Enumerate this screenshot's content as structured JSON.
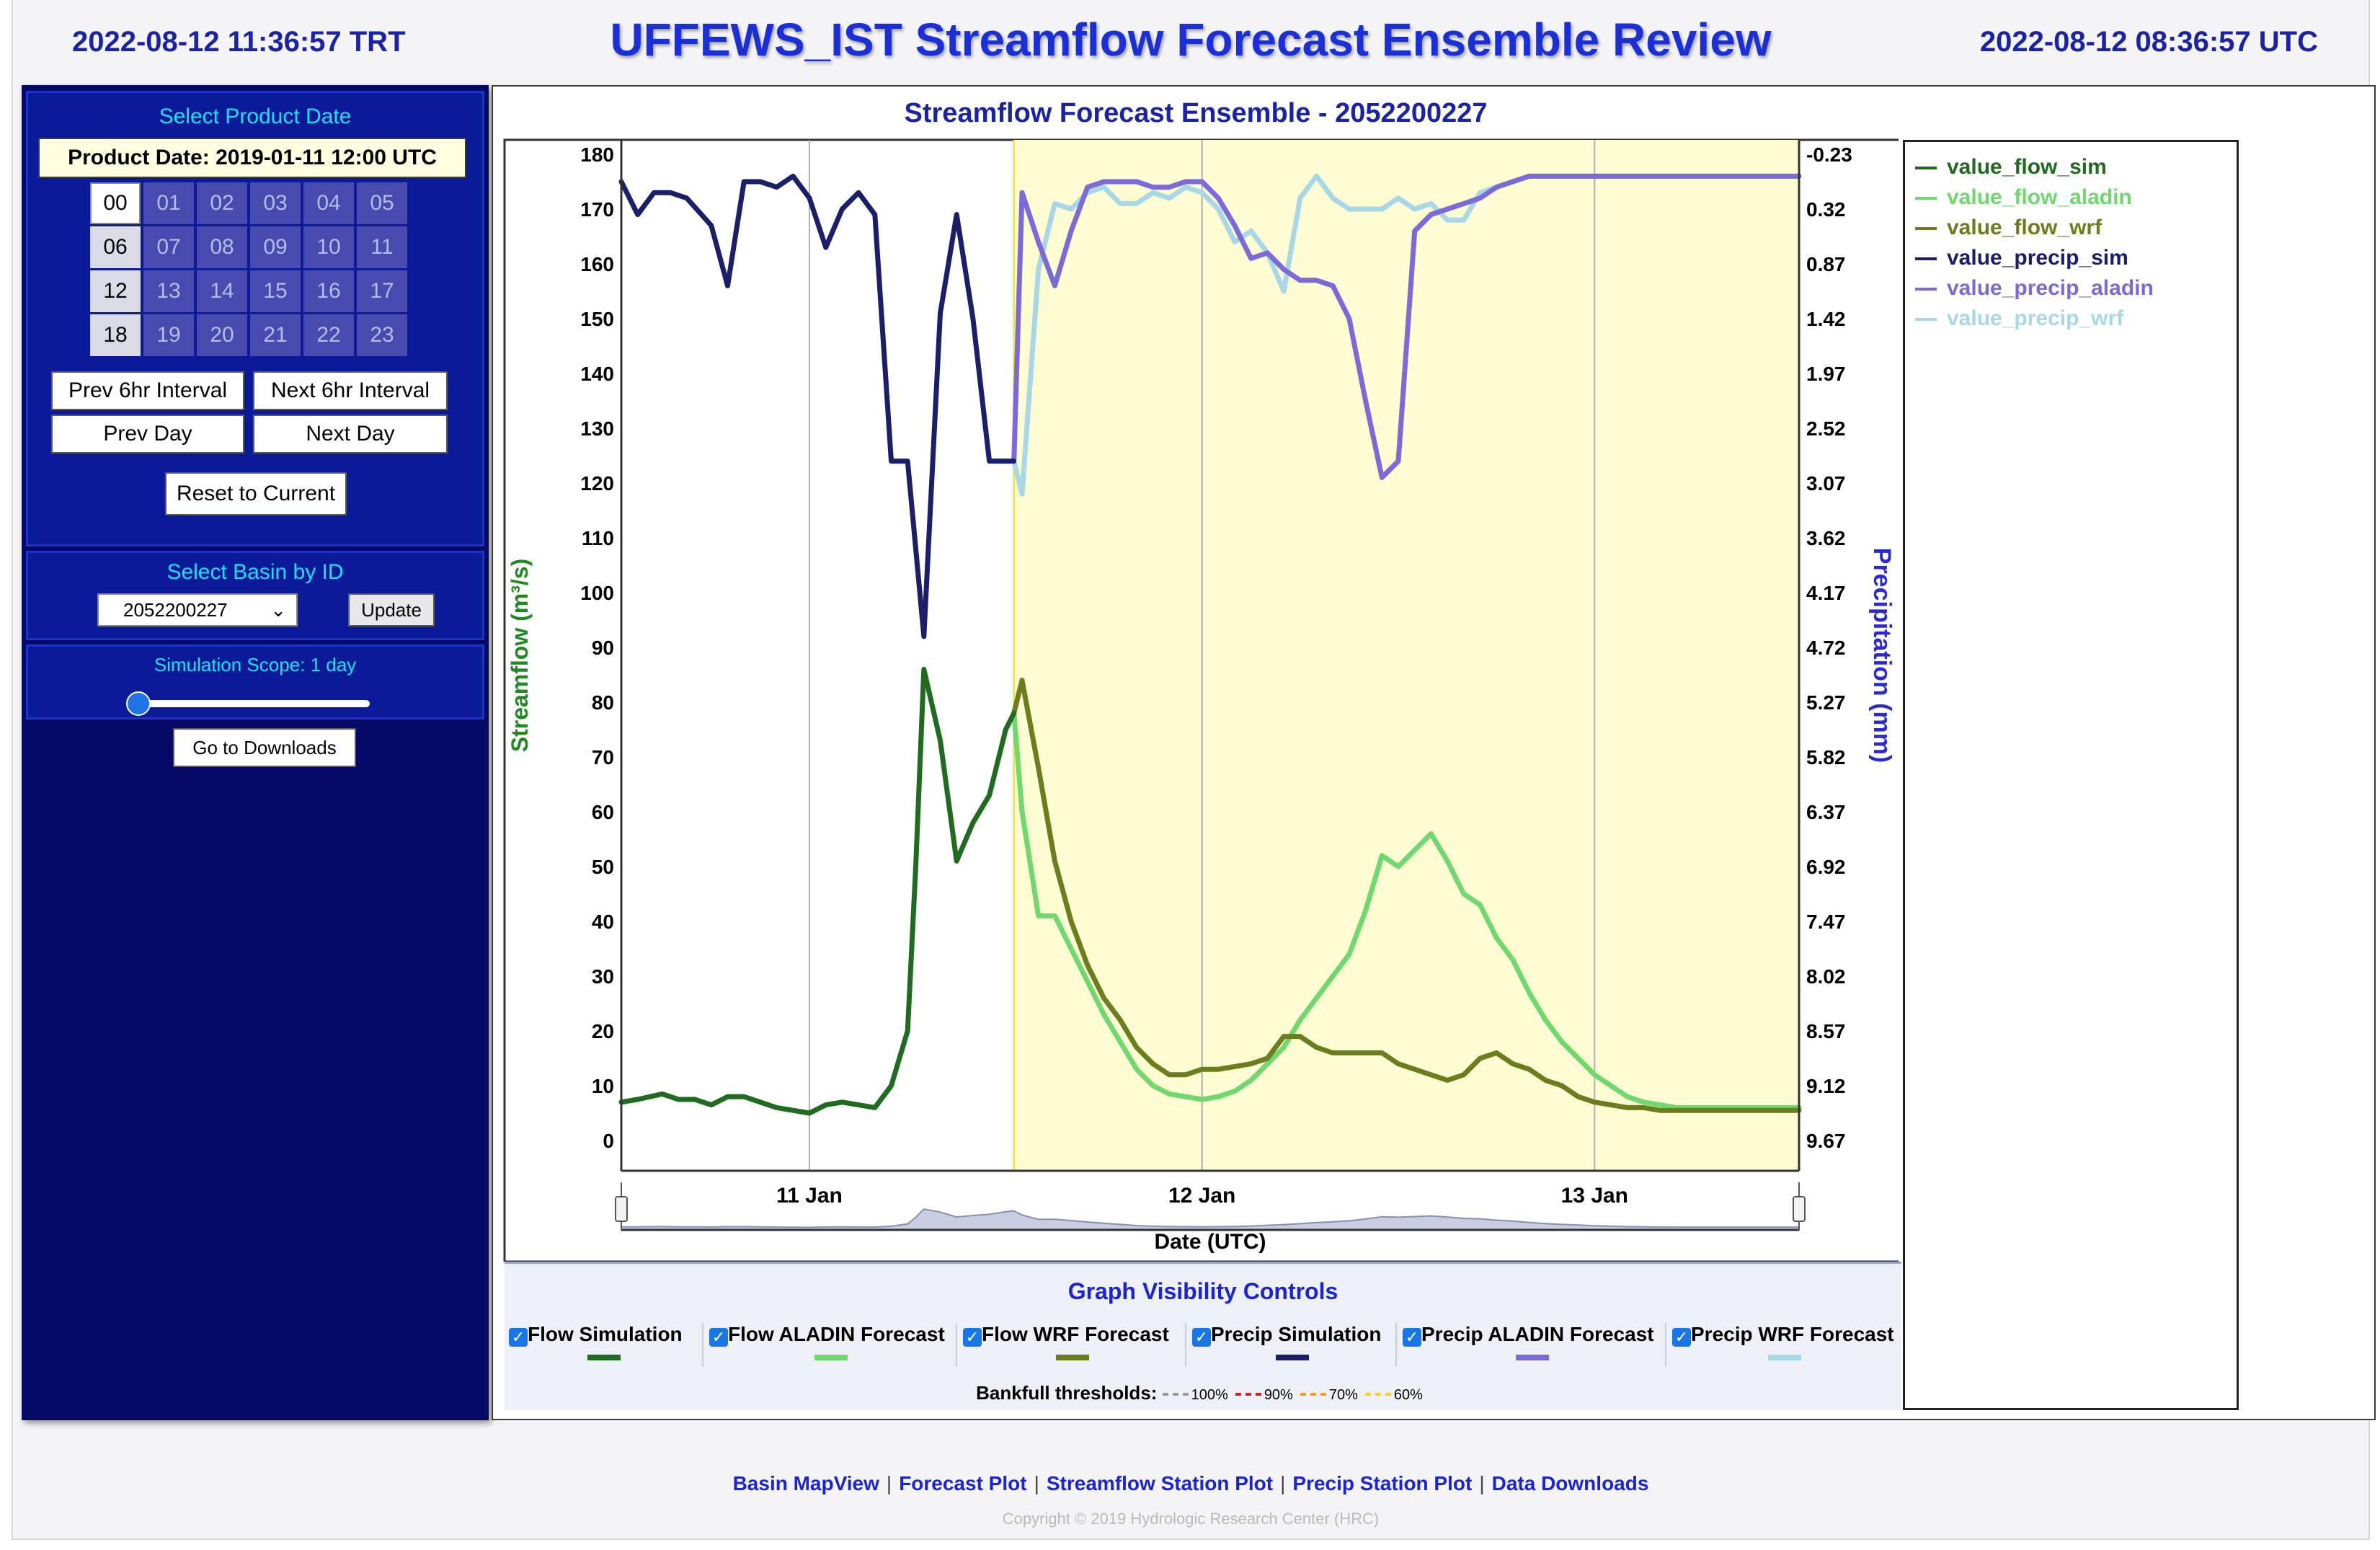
{
  "header": {
    "local_time": "2022-08-12   11:36:57 TRT",
    "title": "UFFEWS_IST Streamflow Forecast Ensemble Review",
    "utc_time": "2022-08-12   08:36:57 UTC"
  },
  "sidebar": {
    "product_section_title": "Select Product Date",
    "product_date": "Product Date: 2019-01-11 12:00 UTC",
    "hours": [
      "00",
      "01",
      "02",
      "03",
      "04",
      "05",
      "06",
      "07",
      "08",
      "09",
      "10",
      "11",
      "12",
      "13",
      "14",
      "15",
      "16",
      "17",
      "18",
      "19",
      "20",
      "21",
      "22",
      "23"
    ],
    "prev_6hr": "Prev 6hr Interval",
    "next_6hr": "Next 6hr Interval",
    "prev_day": "Prev Day",
    "next_day": "Next Day",
    "reset": "Reset to Current",
    "basin_section_title": "Select Basin by ID",
    "basin_id": "2052200227",
    "update": "Update",
    "scope_label": "Simulation Scope: 1 day",
    "scope_days": 1,
    "downloads": "Go to Downloads"
  },
  "chart_data": {
    "type": "line",
    "title": "Streamflow Forecast Ensemble - 2052200227",
    "xlabel": "Date (UTC)",
    "ylabel": "Streamflow (m³/s)",
    "y2label": "Precipitation (mm)",
    "ylim": [
      0,
      180
    ],
    "y2lim": [
      9.67,
      -0.23
    ],
    "yticks": [
      "180",
      "170",
      "160",
      "150",
      "140",
      "130",
      "120",
      "110",
      "100",
      "90",
      "80",
      "70",
      "60",
      "50",
      "40",
      "30",
      "20",
      "10",
      "0"
    ],
    "y2ticks": [
      "-0.23",
      "0.32",
      "0.87",
      "1.42",
      "1.97",
      "2.52",
      "3.07",
      "3.62",
      "4.17",
      "4.72",
      "5.27",
      "5.82",
      "6.37",
      "6.92",
      "7.47",
      "8.02",
      "8.57",
      "9.12",
      "9.67"
    ],
    "xticks": [
      "11 Jan",
      "12 Jan",
      "13 Jan"
    ],
    "xtick_hours": [
      24,
      48,
      72
    ],
    "xlim_hours": [
      12.5,
      84.5
    ],
    "forecast_start_hour": 36.5,
    "legend": [
      "value_flow_sim",
      "value_flow_aladin",
      "value_flow_wrf",
      "value_precip_sim",
      "value_precip_aladin",
      "value_precip_wrf"
    ],
    "colors": {
      "value_flow_sim": "#1f6b1f",
      "value_flow_aladin": "#6fd86f",
      "value_flow_wrf": "#6b7d1c",
      "value_precip_sim": "#1a1e6b",
      "value_precip_aladin": "#7b6ad8",
      "value_precip_wrf": "#a8d8e8"
    },
    "series": [
      {
        "name": "value_flow_sim",
        "axis": "left",
        "x": [
          12.5,
          13.5,
          15,
          16,
          17,
          18,
          19,
          20,
          21,
          22,
          23,
          24,
          25,
          26,
          27,
          28,
          29,
          30,
          30.5,
          31,
          32,
          33,
          34,
          35,
          36,
          36.5
        ],
        "y": [
          7,
          7.5,
          8.5,
          7.5,
          7.5,
          6.5,
          8,
          8,
          7,
          6,
          5.5,
          5,
          6.5,
          7,
          6.5,
          6,
          10,
          20,
          50,
          86,
          73,
          51,
          58,
          63,
          75,
          78
        ]
      },
      {
        "name": "value_flow_aladin",
        "axis": "left",
        "x": [
          36.5,
          37,
          38,
          39,
          40,
          41,
          42,
          43,
          44,
          45,
          46,
          47,
          48,
          49,
          50,
          51,
          52,
          53,
          54,
          55,
          56,
          57,
          58,
          59,
          60,
          61,
          62,
          63,
          64,
          65,
          66,
          67,
          68,
          69,
          70,
          71,
          72,
          73,
          74,
          75,
          76,
          77,
          78,
          79,
          80,
          81,
          82,
          83,
          84,
          84.5
        ],
        "y": [
          78,
          60,
          41,
          41,
          35,
          29,
          23,
          18,
          13,
          10,
          8.5,
          8,
          7.5,
          8,
          9,
          11,
          14,
          17,
          22,
          26,
          30,
          34,
          42,
          52,
          50,
          53,
          56,
          51,
          45,
          43,
          37,
          33,
          27,
          22,
          18,
          15,
          12,
          10,
          8,
          7,
          6.5,
          6,
          6,
          6,
          6,
          6,
          6,
          6,
          6,
          6
        ]
      },
      {
        "name": "value_flow_wrf",
        "axis": "left",
        "x": [
          36.5,
          37,
          38,
          39,
          40,
          41,
          42,
          43,
          44,
          45,
          46,
          47,
          48,
          49,
          50,
          51,
          52,
          53,
          54,
          55,
          56,
          57,
          58,
          59,
          60,
          61,
          62,
          63,
          64,
          65,
          66,
          67,
          68,
          69,
          70,
          71,
          72,
          73,
          74,
          75,
          76,
          77,
          78,
          79,
          80,
          81,
          82,
          83,
          84,
          84.5
        ],
        "y": [
          78,
          84,
          68,
          51,
          40,
          32,
          26,
          22,
          17,
          14,
          12,
          12,
          13,
          13,
          13.5,
          14,
          15,
          19,
          19,
          17,
          16,
          16,
          16,
          16,
          14,
          13,
          12,
          11,
          12,
          15,
          16,
          14,
          13,
          11,
          10,
          8,
          7,
          6.5,
          6,
          6,
          5.5,
          5.5,
          5.5,
          5.5,
          5.5,
          5.5,
          5.5,
          5.5,
          5.5,
          5.5
        ]
      },
      {
        "name": "value_precip_sim",
        "axis": "left",
        "x": [
          12.5,
          13.5,
          14.5,
          15.5,
          16.5,
          18,
          19,
          20,
          21,
          22,
          23,
          24,
          25,
          26,
          27,
          28,
          29,
          30,
          31,
          32,
          33,
          34,
          35,
          36,
          36.5
        ],
        "y": [
          175,
          169,
          173,
          173,
          172,
          167,
          156,
          175,
          175,
          174,
          176,
          172,
          163,
          170,
          173,
          169,
          124,
          124,
          92,
          151,
          169,
          150,
          124,
          124,
          124
        ]
      },
      {
        "name": "value_precip_aladin",
        "axis": "left",
        "x": [
          36.5,
          37,
          38,
          39,
          40,
          41,
          42,
          43,
          44,
          45,
          46,
          47,
          48,
          49,
          50,
          51,
          52,
          53,
          54,
          55,
          56,
          57,
          58,
          59,
          60,
          61,
          62,
          63,
          64,
          65,
          66,
          67,
          68,
          69,
          70,
          71,
          72,
          73,
          74,
          75,
          76,
          77,
          78,
          79,
          80,
          81,
          82,
          83,
          84,
          84.5
        ],
        "y": [
          124,
          173,
          164,
          156,
          166,
          174,
          175,
          175,
          175,
          174,
          174,
          175,
          175,
          172,
          167,
          161,
          162,
          159,
          157,
          157,
          156,
          150,
          135,
          121,
          124,
          166,
          169,
          170,
          171,
          172,
          174,
          175,
          176,
          176,
          176,
          176,
          176,
          176,
          176,
          176,
          176,
          176,
          176,
          176,
          176,
          176,
          176,
          176,
          176,
          176
        ]
      },
      {
        "name": "value_precip_wrf",
        "axis": "left",
        "x": [
          36.5,
          37,
          38,
          39,
          40,
          41,
          42,
          43,
          44,
          45,
          46,
          47,
          48,
          49,
          50,
          51,
          52,
          53,
          54,
          55,
          56,
          57,
          58,
          59,
          60,
          61,
          62,
          63,
          64,
          65,
          66,
          67,
          68,
          69,
          70,
          71,
          72,
          73,
          74,
          75,
          76,
          77,
          78,
          79,
          80,
          81,
          82,
          83,
          84,
          84.5
        ],
        "y": [
          124,
          118,
          159,
          171,
          170,
          173,
          174,
          171,
          171,
          173,
          172,
          174,
          173,
          170,
          164,
          166,
          162,
          155,
          172,
          176,
          172,
          170,
          170,
          170,
          172,
          170,
          171,
          168,
          168,
          173,
          174,
          175,
          176,
          176,
          176,
          176,
          176,
          176,
          176,
          176,
          176,
          176,
          176,
          176,
          176,
          176,
          176,
          176,
          176,
          176
        ]
      }
    ]
  },
  "controls": {
    "title": "Graph Visibility Controls",
    "items": [
      {
        "label": "Flow Simulation",
        "color": "#1f6b1f"
      },
      {
        "label": "Flow ALADIN Forecast",
        "color": "#6fd86f"
      },
      {
        "label": "Flow WRF Forecast",
        "color": "#6b7d1c"
      },
      {
        "label": "Precip Simulation",
        "color": "#1a1e6b"
      },
      {
        "label": "Precip ALADIN Forecast",
        "color": "#7b6ad8"
      },
      {
        "label": "Precip WRF Forecast",
        "color": "#a8d8e8"
      }
    ],
    "bankfull_label": "Bankfull thresholds:",
    "thresholds": [
      {
        "label": "100%",
        "color": "#9a9a9a"
      },
      {
        "label": "90%",
        "color": "#e02020"
      },
      {
        "label": "70%",
        "color": "#ff9a20"
      },
      {
        "label": "60%",
        "color": "#ffd020"
      }
    ]
  },
  "footer": {
    "links": [
      "Basin MapView",
      "Forecast Plot",
      "Streamflow Station Plot",
      "Precip Station Plot",
      "Data Downloads"
    ],
    "copyright": "Copyright © 2019 Hydrologic Research Center (HRC)"
  }
}
